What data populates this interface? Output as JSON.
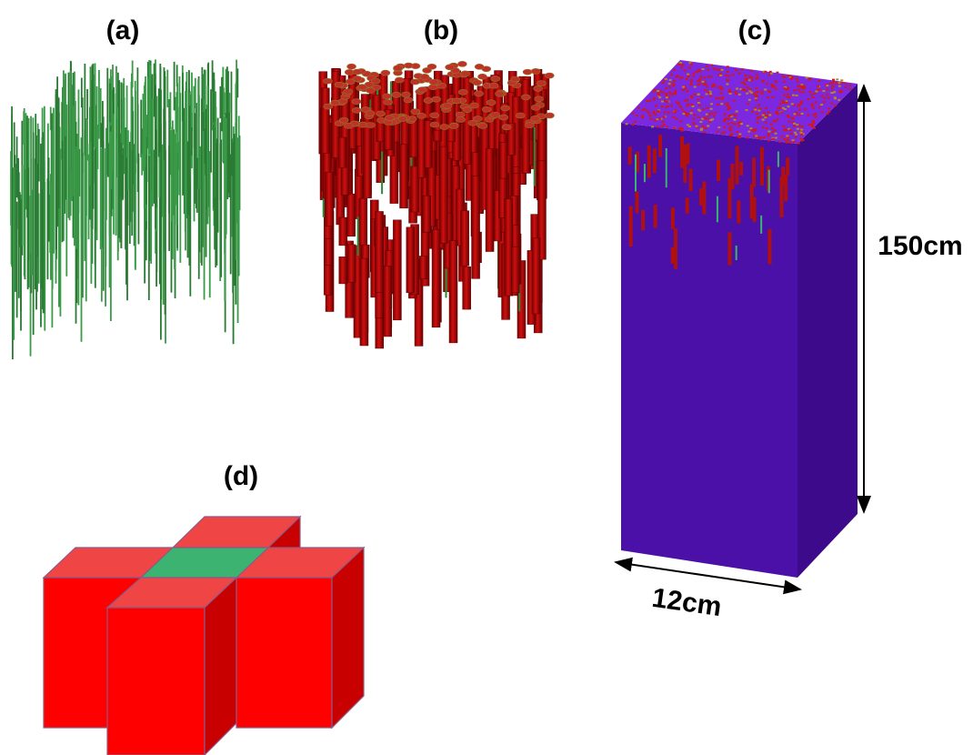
{
  "panels": [
    {
      "label": "(a)"
    },
    {
      "label": "(b)"
    },
    {
      "label": "(c)"
    },
    {
      "label": "(d)"
    }
  ],
  "dimensions": {
    "height": "150cm",
    "width": "12cm"
  }
}
